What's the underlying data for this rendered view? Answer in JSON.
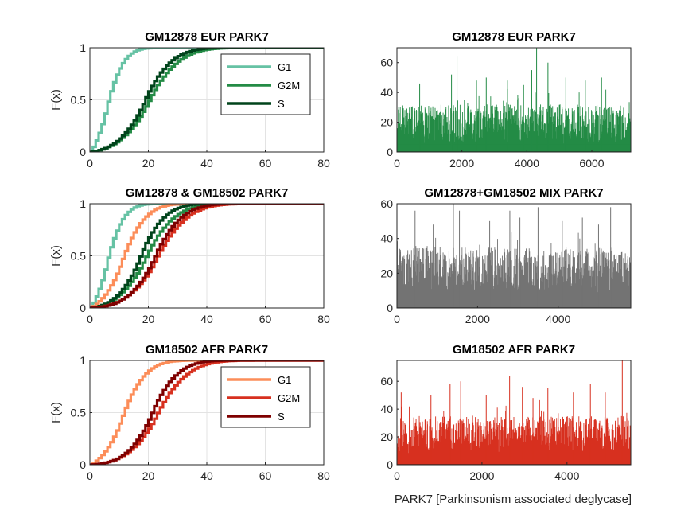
{
  "figure": {
    "xlabel_bottom_right": "PARK7 [Parkinsonism associated deglycase]"
  },
  "colors": {
    "g1_green": "#66c2a4",
    "g2m_green": "#238b45",
    "s_green": "#00441b",
    "g1_red": "#fc8d59",
    "g2m_red": "#d7301f",
    "s_red": "#7f0000",
    "gray": "#737373"
  },
  "chart_data": [
    {
      "id": "cdf-eur",
      "type": "line",
      "title": "GM12878 EUR PARK7",
      "ylabel": "F(x)",
      "xlim": [
        0,
        80
      ],
      "ylim": [
        0,
        1
      ],
      "xticks": [
        0,
        20,
        40,
        60,
        80
      ],
      "yticks": [
        0,
        0.5,
        1
      ],
      "yticklabels": [
        "0",
        "0.5",
        "1"
      ],
      "grid": true,
      "legend": "top-right",
      "series": [
        {
          "name": "G1",
          "color": "#66c2a4",
          "mu": 5.5,
          "sigma": 5.5,
          "xmax": 40
        },
        {
          "name": "G2M",
          "color": "#238b45",
          "mu": 20,
          "sigma": 10,
          "xmax": 71
        },
        {
          "name": "S",
          "color": "#00441b",
          "mu": 18.5,
          "sigma": 9,
          "xmax": 62
        }
      ]
    },
    {
      "id": "hist-eur",
      "type": "bar",
      "title": "GM12878 EUR PARK7",
      "xlim": [
        0,
        7200
      ],
      "ylim": [
        0,
        70
      ],
      "xticks": [
        0,
        2000,
        4000,
        6000
      ],
      "yticks": [
        0,
        20,
        40,
        60
      ],
      "fill": "#238b45",
      "n_cells": 7200,
      "typical_range": [
        5,
        32
      ],
      "peaks": [
        [
          1850,
          64
        ],
        [
          4300,
          70
        ],
        [
          1680,
          52
        ],
        [
          4150,
          55
        ],
        [
          4650,
          60
        ],
        [
          2750,
          50
        ],
        [
          2450,
          48
        ],
        [
          5200,
          50
        ],
        [
          700,
          46
        ],
        [
          3400,
          48
        ],
        [
          6300,
          50
        ],
        [
          3900,
          45
        ],
        [
          5800,
          48
        ]
      ]
    },
    {
      "id": "cdf-mix",
      "type": "line",
      "title": "GM12878 & GM18502 PARK7",
      "ylabel": "F(x)",
      "xlim": [
        0,
        80
      ],
      "ylim": [
        0,
        1
      ],
      "xticks": [
        0,
        20,
        40,
        60,
        80
      ],
      "yticks": [
        0,
        0.5,
        1
      ],
      "yticklabels": [
        "0",
        "0.5",
        "1"
      ],
      "grid": true,
      "legend": "none",
      "series": [
        {
          "name": "",
          "color": "#66c2a4",
          "mu": 5.5,
          "sigma": 5.5,
          "xmax": 50
        },
        {
          "name": "",
          "color": "#fc8d59",
          "mu": 11,
          "sigma": 7.5,
          "xmax": 55
        },
        {
          "name": "",
          "color": "#238b45",
          "mu": 19,
          "sigma": 9.5,
          "xmax": 65
        },
        {
          "name": "",
          "color": "#00441b",
          "mu": 17,
          "sigma": 8,
          "xmax": 58
        },
        {
          "name": "",
          "color": "#d7301f",
          "mu": 23,
          "sigma": 10,
          "xmax": 75
        },
        {
          "name": "",
          "color": "#7f0000",
          "mu": 22,
          "sigma": 9,
          "xmax": 70
        }
      ]
    },
    {
      "id": "hist-mix",
      "type": "bar",
      "title": "GM12878+GM18502 MIX PARK7",
      "xlim": [
        0,
        5800
      ],
      "ylim": [
        0,
        60
      ],
      "xticks": [
        0,
        2000,
        4000
      ],
      "yticks": [
        0,
        20,
        40,
        60
      ],
      "fill": "#737373",
      "n_cells": 5800,
      "typical_range": [
        8,
        35
      ],
      "peaks": [
        [
          1400,
          61
        ],
        [
          1550,
          56
        ],
        [
          450,
          56
        ],
        [
          3500,
          58
        ],
        [
          5300,
          58
        ],
        [
          2800,
          56
        ],
        [
          4100,
          50
        ],
        [
          2300,
          50
        ],
        [
          5000,
          48
        ],
        [
          3050,
          52
        ],
        [
          900,
          48
        ],
        [
          4600,
          52
        ]
      ]
    },
    {
      "id": "cdf-afr",
      "type": "line",
      "title": "GM18502 AFR PARK7",
      "ylabel": "F(x)",
      "xlim": [
        0,
        80
      ],
      "ylim": [
        0,
        1
      ],
      "xticks": [
        0,
        20,
        40,
        60,
        80
      ],
      "yticks": [
        0,
        0.5,
        1
      ],
      "yticklabels": [
        "0",
        "0.5",
        "1"
      ],
      "grid": true,
      "legend": "top-right",
      "series": [
        {
          "name": "G1",
          "color": "#fc8d59",
          "mu": 11,
          "sigma": 7.5,
          "xmax": 55
        },
        {
          "name": "G2M",
          "color": "#d7301f",
          "mu": 23,
          "sigma": 10,
          "xmax": 75
        },
        {
          "name": "S",
          "color": "#7f0000",
          "mu": 21,
          "sigma": 8.5,
          "xmax": 54
        }
      ]
    },
    {
      "id": "hist-afr",
      "type": "bar",
      "title": "GM18502 AFR PARK7",
      "xlim": [
        0,
        5500
      ],
      "ylim": [
        0,
        75
      ],
      "xticks": [
        0,
        2000,
        4000
      ],
      "yticks": [
        0,
        20,
        40,
        60
      ],
      "fill": "#d7301f",
      "n_cells": 5500,
      "typical_range": [
        8,
        35
      ],
      "peaks": [
        [
          5300,
          75
        ],
        [
          2650,
          64
        ],
        [
          1500,
          60
        ],
        [
          1250,
          58
        ],
        [
          100,
          52
        ],
        [
          3550,
          55
        ],
        [
          4550,
          58
        ],
        [
          2950,
          56
        ],
        [
          800,
          50
        ],
        [
          4150,
          52
        ],
        [
          2100,
          50
        ],
        [
          4900,
          52
        ],
        [
          3200,
          48
        ]
      ]
    }
  ]
}
